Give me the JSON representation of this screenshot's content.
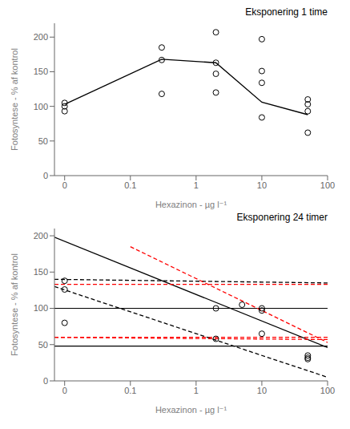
{
  "chart_data": [
    {
      "type": "scatter",
      "title": "Eksponering 1 time",
      "xlabel": "Hexazinon - µg l⁻¹",
      "ylabel": "Fotosyntese - % af kontrol",
      "log": "x",
      "xlim": [
        0.007,
        100
      ],
      "xticks": [
        {
          "value": 0.01,
          "label": "0"
        },
        0.1,
        1,
        10,
        100
      ],
      "ylim": [
        0,
        220
      ],
      "yticks": [
        0,
        50,
        100,
        150,
        200
      ],
      "series": [
        {
          "type": "scatter",
          "marker": "circle",
          "color": "black",
          "x": [
            0.01,
            0.01,
            0.01,
            0.3,
            0.3,
            0.3,
            2,
            2,
            2,
            2,
            10,
            10,
            10,
            10,
            50,
            50,
            50,
            50
          ],
          "values": [
            105,
            100,
            93,
            185,
            167,
            118,
            207,
            163,
            147,
            120,
            197,
            151,
            134,
            84,
            110,
            103,
            93,
            62
          ]
        },
        {
          "type": "line",
          "color": "black",
          "line_style": "solid",
          "x": [
            0.01,
            0.3,
            2,
            10,
            50
          ],
          "values": [
            103,
            168,
            163,
            106,
            88
          ]
        }
      ]
    },
    {
      "type": "scatter",
      "title": "Eksponering 24 timer",
      "xlabel": "Hexazinon - µg l⁻¹",
      "ylabel": "Fotosyntese - % af kontrol",
      "log": "x",
      "xlim": [
        0.007,
        100
      ],
      "xticks": [
        {
          "value": 0.01,
          "label": "0"
        },
        0.1,
        1,
        10,
        100
      ],
      "ylim": [
        0,
        210
      ],
      "yticks": [
        0,
        50,
        100,
        150,
        200
      ],
      "series": [
        {
          "type": "scatter",
          "marker": "circle",
          "color": "black",
          "x": [
            0.01,
            0.01,
            0.01,
            2,
            2,
            5,
            10,
            10,
            10,
            50,
            50,
            50
          ],
          "values": [
            138,
            126,
            80,
            100,
            58,
            105,
            100,
            97,
            65,
            35,
            32,
            30
          ]
        },
        {
          "type": "line",
          "color": "black",
          "line_style": "solid",
          "x": [
            0.007,
            100
          ],
          "values": [
            198,
            46
          ]
        },
        {
          "type": "line",
          "color": "black",
          "line_style": "dashed",
          "x": [
            0.007,
            100
          ],
          "values": [
            140,
            135
          ]
        },
        {
          "type": "line",
          "color": "black",
          "line_style": "dashed",
          "x": [
            0.007,
            100
          ],
          "values": [
            130,
            5
          ]
        },
        {
          "type": "line",
          "color": "red",
          "line_style": "dashed",
          "x": [
            0.1,
            100
          ],
          "values": [
            185,
            53
          ]
        },
        {
          "type": "line",
          "color": "red",
          "line_style": "dashed",
          "x": [
            0.007,
            100
          ],
          "values": [
            133,
            133
          ]
        },
        {
          "type": "line",
          "color": "red",
          "line_style": "dashed",
          "x": [
            0.007,
            100
          ],
          "values": [
            60,
            57
          ]
        },
        {
          "type": "hline",
          "color": "black",
          "line_style": "solid",
          "values": [
            100
          ]
        },
        {
          "type": "hline",
          "color": "black",
          "line_style": "solid",
          "values": [
            48
          ]
        },
        {
          "type": "hline",
          "color": "red",
          "line_style": "dashed",
          "values": [
            60
          ]
        }
      ]
    }
  ]
}
